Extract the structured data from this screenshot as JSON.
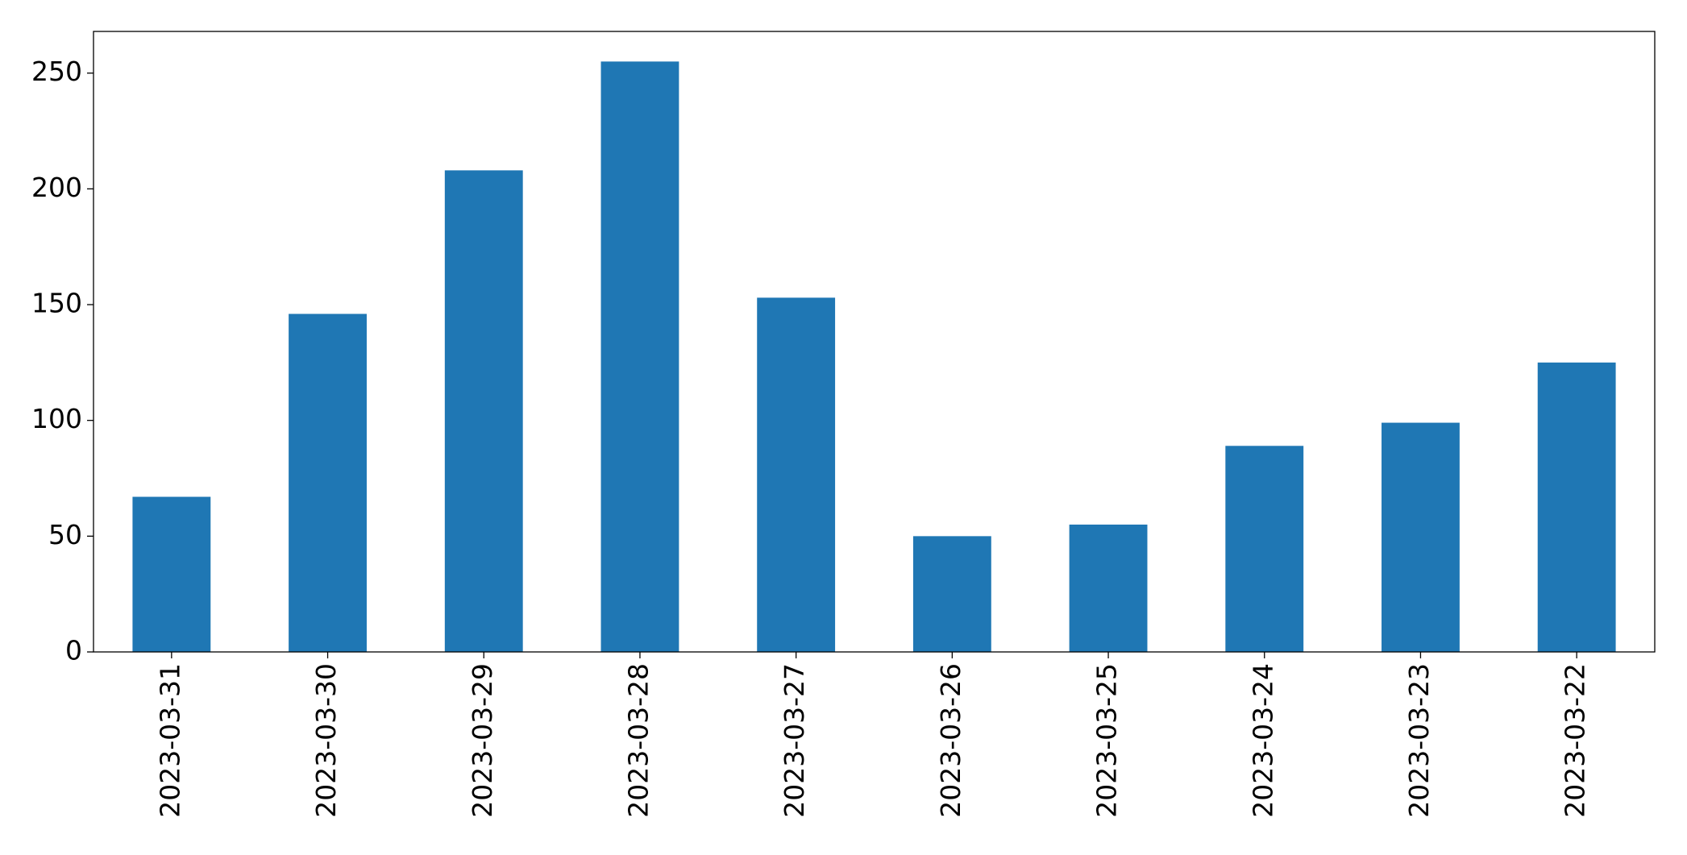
{
  "chart_data": {
    "type": "bar",
    "categories": [
      "2023-03-31",
      "2023-03-30",
      "2023-03-29",
      "2023-03-28",
      "2023-03-27",
      "2023-03-26",
      "2023-03-25",
      "2023-03-24",
      "2023-03-23",
      "2023-03-22"
    ],
    "values": [
      67,
      146,
      208,
      255,
      153,
      50,
      55,
      89,
      99,
      125
    ],
    "color": "#1f77b4",
    "ylim": [
      0,
      268
    ],
    "yticks": [
      0,
      50,
      100,
      150,
      200,
      250
    ],
    "grid": false
  }
}
